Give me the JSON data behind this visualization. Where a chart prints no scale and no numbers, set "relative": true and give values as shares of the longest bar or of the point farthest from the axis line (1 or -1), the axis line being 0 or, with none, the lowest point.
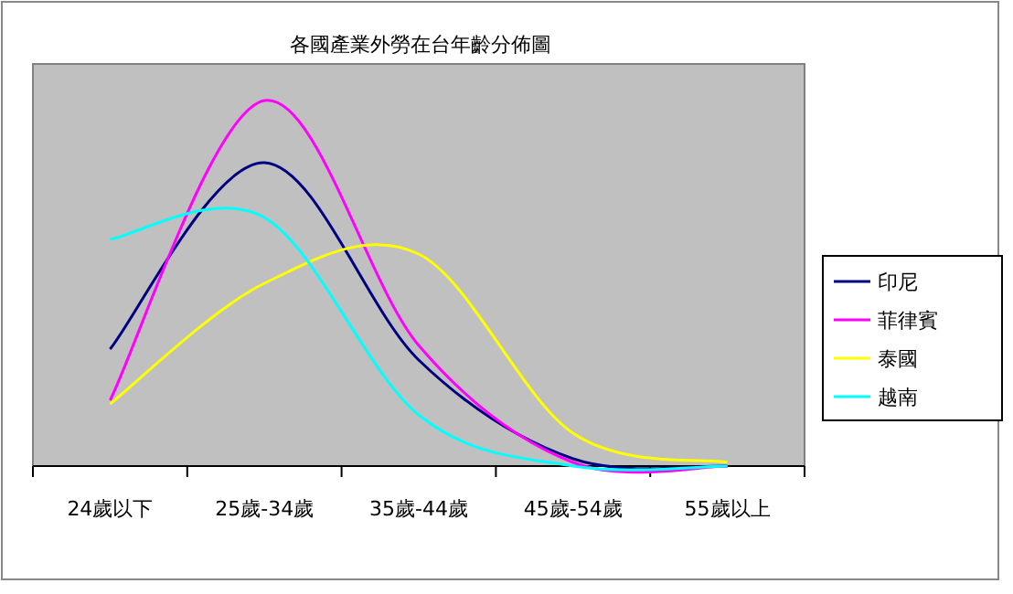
{
  "chart_data": {
    "type": "line",
    "title": "各國產業外勞在台年齡分佈圖",
    "relative": true,
    "legend": "right",
    "grid": false,
    "marker": "none",
    "categories": [
      "24歲以下",
      "25歲-34歲",
      "35歲-44歲",
      "45歲-54歲",
      "55歲以上"
    ],
    "series": [
      {
        "name": "印尼",
        "color": "#000080",
        "values": [
          0.32,
          0.83,
          0.29,
          0.02,
          0
        ]
      },
      {
        "name": "菲律賓",
        "color": "#ff00ff",
        "values": [
          0.18,
          1,
          0.33,
          0.01,
          0
        ]
      },
      {
        "name": "泰國",
        "color": "#ffff00",
        "values": [
          0.17,
          0.5,
          0.58,
          0.09,
          0.01
        ]
      },
      {
        "name": "越南",
        "color": "#00ffff",
        "values": [
          0.62,
          0.68,
          0.14,
          0,
          0
        ]
      }
    ]
  }
}
